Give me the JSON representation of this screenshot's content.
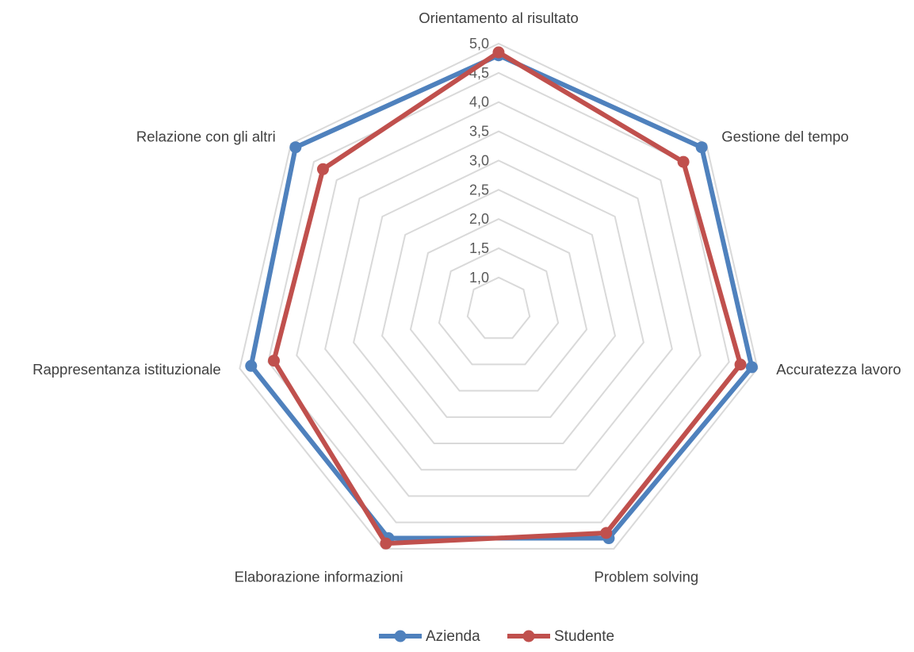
{
  "chart_data": {
    "type": "radar",
    "categories": [
      "Orientamento al risultato",
      "Gestione del tempo",
      "Accuratezza lavoro",
      "Problem solving",
      "Elaborazione informazioni",
      "Rappresentanza istituzionale",
      "Relazione con gli altri"
    ],
    "series": [
      {
        "name": "Azienda",
        "color": "#4f81bd",
        "values": [
          4.8,
          4.9,
          4.9,
          4.8,
          4.8,
          4.8,
          4.9
        ]
      },
      {
        "name": "Studente",
        "color": "#c0504d",
        "values": [
          4.85,
          4.5,
          4.7,
          4.7,
          4.9,
          4.4,
          4.3
        ]
      }
    ],
    "rlim": [
      1.0,
      5.0
    ],
    "tick_labels": [
      "1,0",
      "1,5",
      "2,0",
      "2,5",
      "3,0",
      "3,5",
      "4,0",
      "4,5",
      "5,0"
    ],
    "grid": true,
    "legend_position": "bottom"
  }
}
